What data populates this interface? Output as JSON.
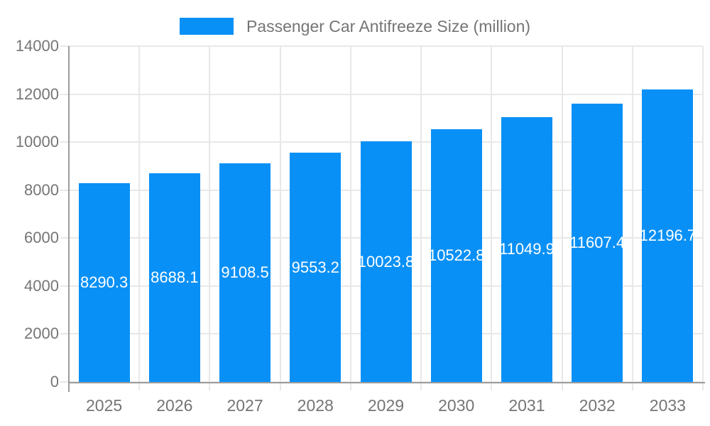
{
  "chart_data": {
    "type": "bar",
    "title": "Passenger Car Antifreeze Size (million)",
    "categories": [
      "2025",
      "2026",
      "2027",
      "2028",
      "2029",
      "2030",
      "2031",
      "2032",
      "2033"
    ],
    "values": [
      8290.3,
      8688.1,
      9108.5,
      9553.2,
      10023.8,
      10522.8,
      11049.9,
      11607.4,
      12196.7
    ],
    "value_labels": [
      "8290.3",
      "8688.1",
      "9108.5",
      "9553.2",
      "10023.8",
      "10522.8",
      "11049.9",
      "11607.4",
      "12196.7"
    ],
    "ylim": [
      0,
      14000
    ],
    "ytick_step": 2000,
    "ytick_labels": [
      "0",
      "2000",
      "4000",
      "6000",
      "8000",
      "10000",
      "12000",
      "14000"
    ],
    "grid": true,
    "legend_position": "top"
  },
  "colors": {
    "bar": "#0990f6",
    "text": "#757575",
    "axis": "#9c9c9c",
    "grid": "#e8e8e8",
    "value_label": "#ffffff"
  }
}
